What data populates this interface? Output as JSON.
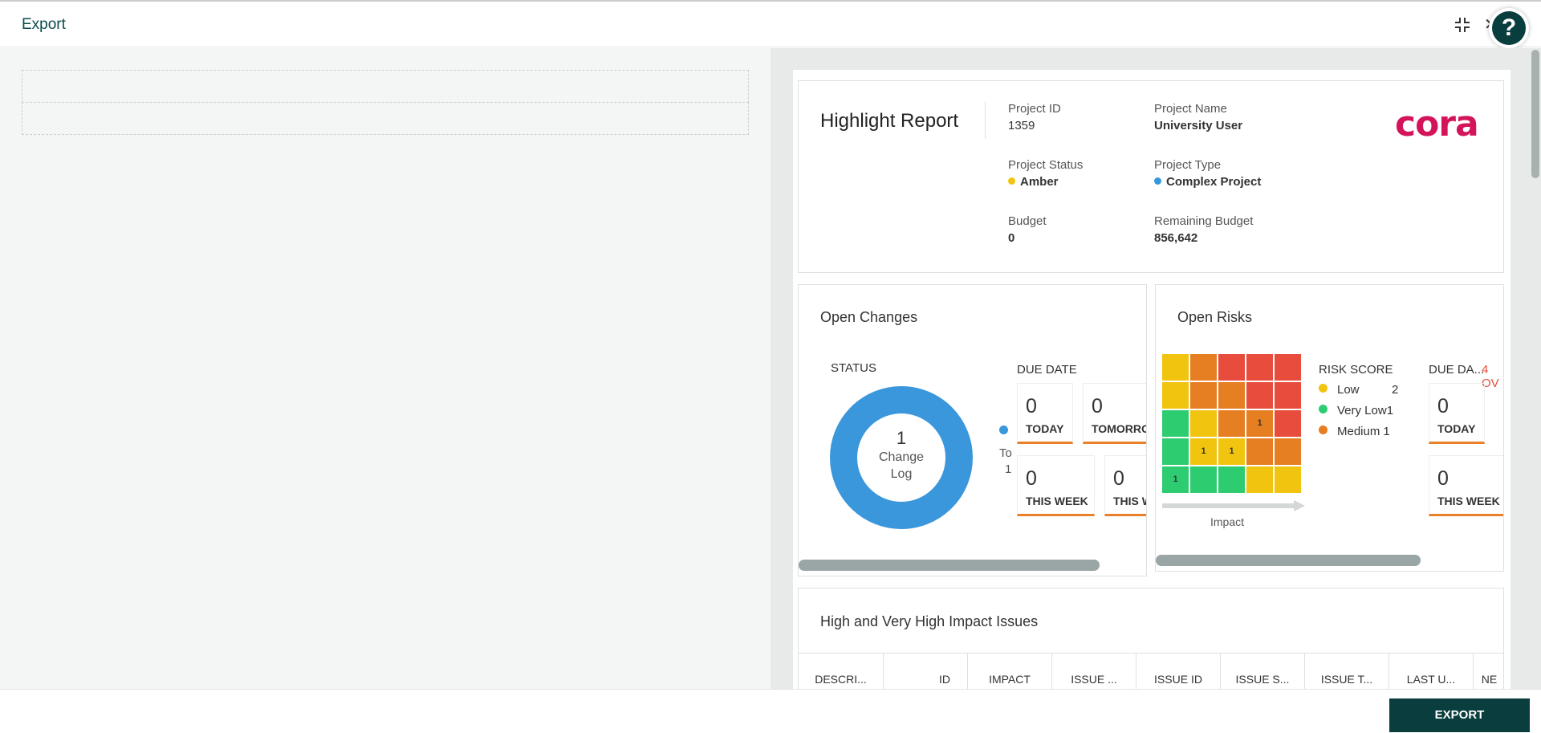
{
  "window": {
    "title": "Export"
  },
  "footer": {
    "export_label": "EXPORT"
  },
  "help": {
    "label": "?"
  },
  "report": {
    "title": "Highlight Report",
    "logo": "cora",
    "logo_color": "#d4145a",
    "fields": {
      "project_id_label": "Project ID",
      "project_id": "1359",
      "project_name_label": "Project Name",
      "project_name": "University User",
      "project_status_label": "Project Status",
      "project_status": "Amber",
      "project_status_color": "#f1c40f",
      "project_type_label": "Project Type",
      "project_type": "Complex Project",
      "project_type_color": "#3498db",
      "budget_label": "Budget",
      "budget": "0",
      "remaining_budget_label": "Remaining Budget",
      "remaining_budget": "856,642"
    },
    "open_changes": {
      "title": "Open Changes",
      "status_label": "STATUS",
      "donut_value": "1",
      "donut_text_1": "Change",
      "donut_text_2": "Log",
      "donut_color": "#3a97dc",
      "legend_partial": "To",
      "legend_partial_value": "1",
      "due_date_label": "DUE DATE",
      "tiles": [
        {
          "value": "0",
          "label": "TODAY"
        },
        {
          "value": "0",
          "label": "TOMORROW"
        },
        {
          "value": "0",
          "label": "THIS WEEK"
        },
        {
          "value": "0",
          "label": "THIS WEEK"
        }
      ]
    },
    "open_risks": {
      "title": "Open Risks",
      "impact_label": "Impact",
      "risk_score_label": "RISK SCORE",
      "legend": [
        {
          "label": "Low",
          "value": "2",
          "color": "#f1c40f"
        },
        {
          "label": "Very Low",
          "value": "1",
          "color": "#2ecc71"
        },
        {
          "label": "Medium",
          "value": "1",
          "color": "#e67e22"
        }
      ],
      "due_date_label": "DUE DA...",
      "overdue_label": "4 OV",
      "tiles": [
        {
          "value": "0",
          "label": "TODAY"
        },
        {
          "value": "0",
          "label": "THIS WEEK"
        }
      ],
      "matrix": [
        [
          {
            "c": "#f1c40f",
            "v": ""
          },
          {
            "c": "#e67e22",
            "v": ""
          },
          {
            "c": "#e74c3c",
            "v": ""
          },
          {
            "c": "#e74c3c",
            "v": ""
          },
          {
            "c": "#e74c3c",
            "v": ""
          }
        ],
        [
          {
            "c": "#f1c40f",
            "v": ""
          },
          {
            "c": "#e67e22",
            "v": ""
          },
          {
            "c": "#e67e22",
            "v": ""
          },
          {
            "c": "#e74c3c",
            "v": ""
          },
          {
            "c": "#e74c3c",
            "v": ""
          }
        ],
        [
          {
            "c": "#2ecc71",
            "v": ""
          },
          {
            "c": "#f1c40f",
            "v": ""
          },
          {
            "c": "#e67e22",
            "v": ""
          },
          {
            "c": "#e67e22",
            "v": "1"
          },
          {
            "c": "#e74c3c",
            "v": ""
          }
        ],
        [
          {
            "c": "#2ecc71",
            "v": ""
          },
          {
            "c": "#f1c40f",
            "v": "1"
          },
          {
            "c": "#f1c40f",
            "v": "1"
          },
          {
            "c": "#e67e22",
            "v": ""
          },
          {
            "c": "#e67e22",
            "v": ""
          }
        ],
        [
          {
            "c": "#2ecc71",
            "v": "1"
          },
          {
            "c": "#2ecc71",
            "v": ""
          },
          {
            "c": "#2ecc71",
            "v": ""
          },
          {
            "c": "#f1c40f",
            "v": ""
          },
          {
            "c": "#f1c40f",
            "v": ""
          }
        ]
      ]
    },
    "issues": {
      "title": "High and Very High Impact Issues",
      "columns": [
        "DESCRI...",
        "ID",
        "IMPACT",
        "ISSUE ...",
        "ISSUE ID",
        "ISSUE S...",
        "ISSUE T...",
        "LAST U...",
        "NE"
      ]
    }
  }
}
